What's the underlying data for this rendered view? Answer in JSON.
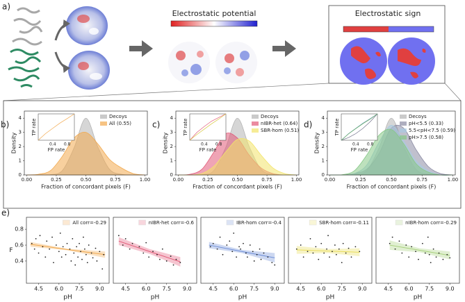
{
  "panel_a": {
    "label": "a)",
    "potential_title": "Electrostatic potential",
    "sign_title": "Electrostatic sign"
  },
  "chart_data": [
    {
      "type": "density",
      "label": "b)",
      "xlabel": "Fraction of concordant pixels (F)",
      "ylabel": "Density",
      "x": [
        0,
        0.1,
        0.2,
        0.3,
        0.4,
        0.5,
        0.6,
        0.7,
        0.8,
        0.9,
        1.0
      ],
      "xlim": [
        -0.02,
        1.02
      ],
      "ylim": [
        0,
        4.5
      ],
      "xticks": [
        {
          "value": 0,
          "label": "0.00"
        },
        {
          "value": 0.25,
          "label": "0.25"
        },
        {
          "value": 0.5,
          "label": "0.50"
        },
        {
          "value": 0.75,
          "label": "0.75"
        },
        {
          "value": 1,
          "label": "1.00"
        }
      ],
      "yticks": [
        0,
        1,
        2,
        3,
        4
      ],
      "series": [
        {
          "name": "Decoys",
          "color": "#b4b4b4",
          "values": [
            0,
            0,
            0.02,
            0.3,
            1.9,
            4.0,
            2.0,
            0.4,
            0.05,
            0,
            0
          ]
        },
        {
          "name": "All (0.55)",
          "color": "#f2a94e",
          "values": [
            0,
            0.05,
            0.3,
            1.3,
            2.6,
            3.0,
            2.2,
            1.1,
            0.5,
            0.1,
            0
          ]
        }
      ],
      "inset": {
        "xlabel": "FP rate",
        "ylabel": "TP rate",
        "xlim": [
          0,
          1
        ],
        "ylim": [
          0,
          1
        ],
        "xticks": [
          0.4,
          0.8
        ],
        "x": [
          0,
          0.2,
          0.4,
          0.6,
          0.8,
          1
        ],
        "series": [
          {
            "color": "#f2a94e",
            "values": [
              0,
              0.25,
              0.45,
              0.65,
              0.82,
              1
            ]
          }
        ]
      }
    },
    {
      "type": "density",
      "label": "c)",
      "xlabel": "Fraction of concordant pixels (F)",
      "ylabel": "Density",
      "x": [
        0,
        0.1,
        0.2,
        0.3,
        0.4,
        0.5,
        0.6,
        0.7,
        0.8,
        0.9,
        1.0
      ],
      "xlim": [
        -0.02,
        1.02
      ],
      "ylim": [
        0,
        4.5
      ],
      "xticks": [
        {
          "value": 0,
          "label": "0.00"
        },
        {
          "value": 0.25,
          "label": "0.25"
        },
        {
          "value": 0.5,
          "label": "0.50"
        },
        {
          "value": 0.75,
          "label": "0.75"
        },
        {
          "value": 1,
          "label": "1.00"
        }
      ],
      "yticks": [
        0,
        1,
        2,
        3,
        4
      ],
      "series": [
        {
          "name": "Decoys",
          "color": "#b4b4b4",
          "values": [
            0,
            0,
            0.02,
            0.3,
            1.9,
            4.0,
            2.0,
            0.4,
            0.05,
            0,
            0
          ]
        },
        {
          "name": "nIBR-het (0.64)",
          "color": "#e25a78",
          "values": [
            0,
            0.05,
            0.4,
            1.6,
            2.9,
            2.6,
            1.4,
            0.5,
            0.1,
            0,
            0
          ]
        },
        {
          "name": "SBR-hom (0.51)",
          "color": "#f2e46a",
          "values": [
            0,
            0,
            0.1,
            0.6,
            1.6,
            2.5,
            2.4,
            1.4,
            0.5,
            0.1,
            0
          ]
        }
      ],
      "inset": {
        "xlabel": "FP rate",
        "ylabel": "TP rate",
        "xlim": [
          0,
          1
        ],
        "ylim": [
          0,
          1
        ],
        "xticks": [
          0.4,
          0.8
        ],
        "x": [
          0,
          0.2,
          0.4,
          0.6,
          0.8,
          1
        ],
        "series": [
          {
            "color": "#e25a78",
            "values": [
              0,
              0.3,
              0.52,
              0.72,
              0.86,
              1
            ]
          },
          {
            "color": "#d8c840",
            "values": [
              0,
              0.22,
              0.42,
              0.62,
              0.8,
              1
            ]
          }
        ]
      }
    },
    {
      "type": "density",
      "label": "d)",
      "xlabel": "Fraction of concordant pixels (F)",
      "ylabel": "Density",
      "x": [
        0,
        0.1,
        0.2,
        0.3,
        0.4,
        0.5,
        0.6,
        0.7,
        0.8,
        0.9,
        1.0
      ],
      "xlim": [
        -0.02,
        1.02
      ],
      "ylim": [
        0,
        4.5
      ],
      "xticks": [
        {
          "value": 0,
          "label": "0.00"
        },
        {
          "value": 0.25,
          "label": "0.25"
        },
        {
          "value": 0.5,
          "label": "0.50"
        },
        {
          "value": 0.75,
          "label": "0.75"
        },
        {
          "value": 1,
          "label": "1.00"
        }
      ],
      "yticks": [
        0,
        1,
        2,
        3,
        4
      ],
      "series": [
        {
          "name": "Decoys",
          "color": "#b4b4b4",
          "values": [
            0,
            0,
            0.02,
            0.3,
            1.9,
            4.0,
            2.0,
            0.4,
            0.05,
            0,
            0
          ]
        },
        {
          "name": "pH<5.5 (0.33)",
          "color": "#8c8ca4",
          "values": [
            0,
            0,
            0.1,
            0.4,
            1.5,
            3.3,
            3.3,
            1.8,
            0.6,
            0.1,
            0
          ]
        },
        {
          "name": "5.5<pH<7.5 (0.59)",
          "color": "#a9cbe2",
          "values": [
            0,
            0,
            0.1,
            0.7,
            2.3,
            3.5,
            2.4,
            1.0,
            0.3,
            0,
            0
          ]
        },
        {
          "name": "pH>7.5 (0.58)",
          "color": "#86c886",
          "values": [
            0,
            0.02,
            0.3,
            1.4,
            2.8,
            3.2,
            2.2,
            0.8,
            0.2,
            0,
            0
          ]
        }
      ],
      "inset": {
        "xlabel": "FP rate",
        "ylabel": "TP rate",
        "xlim": [
          0,
          1
        ],
        "ylim": [
          0,
          1
        ],
        "xticks": [
          0.4,
          0.8
        ],
        "x": [
          0,
          0.2,
          0.4,
          0.6,
          0.8,
          1
        ],
        "series": [
          {
            "color": "#70708a",
            "values": [
              0,
              0.1,
              0.25,
              0.45,
              0.7,
              1
            ]
          },
          {
            "color": "#7fa9c8",
            "values": [
              0,
              0.25,
              0.45,
              0.65,
              0.82,
              1
            ]
          },
          {
            "color": "#60a860",
            "values": [
              0,
              0.24,
              0.44,
              0.63,
              0.8,
              1
            ]
          }
        ]
      }
    },
    {
      "type": "scatter",
      "label": "e)",
      "xlabel": "pH",
      "ylabel": "F",
      "xlim": [
        3.6,
        9.7
      ],
      "ylim": [
        0.12,
        0.95
      ],
      "xticks": [
        4.5,
        {
          "value": 6,
          "label": "6.0"
        },
        7.5,
        {
          "value": 9,
          "label": "9.0"
        }
      ],
      "yticks": [
        0.4,
        0.6,
        0.8
      ],
      "series": [
        {
          "name": "All corr=-0.29",
          "color": "#f2a94e",
          "x": [
            4.0,
            4.2,
            4.3,
            4.5,
            4.6,
            4.8,
            5.0,
            5.1,
            5.3,
            5.5,
            5.6,
            5.8,
            6.0,
            6.1,
            6.2,
            6.3,
            6.5,
            6.6,
            6.8,
            6.9,
            7.0,
            7.1,
            7.2,
            7.3,
            7.4,
            7.5,
            7.6,
            7.7,
            7.8,
            7.9,
            8.0,
            8.1,
            8.2,
            8.4,
            8.5,
            8.7,
            8.8,
            9.0,
            9.2,
            9.3
          ],
          "y": [
            0.62,
            0.55,
            0.68,
            0.5,
            0.72,
            0.58,
            0.45,
            0.65,
            0.55,
            0.7,
            0.38,
            0.6,
            0.52,
            0.75,
            0.45,
            0.58,
            0.48,
            0.62,
            0.55,
            0.4,
            0.68,
            0.5,
            0.35,
            0.58,
            0.45,
            0.62,
            0.52,
            0.42,
            0.7,
            0.55,
            0.48,
            0.38,
            0.6,
            0.5,
            0.44,
            0.56,
            0.4,
            0.52,
            0.3,
            0.48
          ]
        }
      ],
      "fit": {
        "x": [
          3.9,
          6.6,
          9.4
        ],
        "y": [
          0.61,
          0.545,
          0.48
        ],
        "lower": [
          0.58,
          0.535,
          0.44
        ],
        "upper": [
          0.64,
          0.555,
          0.52
        ]
      }
    },
    {
      "type": "scatter",
      "xlabel": "pH",
      "xlim": [
        3.6,
        9.7
      ],
      "ylim": [
        0.12,
        0.95
      ],
      "xticks": [
        4.5,
        {
          "value": 6,
          "label": "6.0"
        },
        7.5,
        {
          "value": 9,
          "label": "9.0"
        }
      ],
      "series": [
        {
          "name": "nIBR-het corr=-0.6",
          "color": "#e25a78",
          "x": [
            4.0,
            4.3,
            4.5,
            4.8,
            5.0,
            5.5,
            5.8,
            6.0,
            6.2,
            6.5,
            6.8,
            7.0,
            7.2,
            7.5,
            7.8,
            8.0,
            8.2,
            8.5
          ],
          "y": [
            0.72,
            0.6,
            0.68,
            0.55,
            0.62,
            0.58,
            0.5,
            0.63,
            0.45,
            0.52,
            0.48,
            0.42,
            0.55,
            0.4,
            0.46,
            0.35,
            0.42,
            0.38
          ]
        }
      ],
      "fit": {
        "x": [
          4.0,
          6.25,
          8.5
        ],
        "y": [
          0.65,
          0.52,
          0.39
        ],
        "lower": [
          0.6,
          0.49,
          0.33
        ],
        "upper": [
          0.7,
          0.55,
          0.45
        ]
      }
    },
    {
      "type": "scatter",
      "xlabel": "pH",
      "xlim": [
        3.6,
        9.7
      ],
      "ylim": [
        0.12,
        0.95
      ],
      "xticks": [
        4.5,
        {
          "value": 6,
          "label": "6.0"
        },
        7.5,
        {
          "value": 9,
          "label": "9.0"
        }
      ],
      "series": [
        {
          "name": "IBR-hom corr=-0.4",
          "color": "#6f8fd8",
          "x": [
            4.3,
            4.5,
            4.8,
            5.0,
            5.2,
            5.5,
            5.7,
            5.9,
            6.0,
            6.2,
            6.4,
            6.5,
            6.7,
            6.9,
            7.0,
            7.2,
            7.4,
            7.5,
            7.7,
            7.9,
            8.0,
            8.2,
            8.5,
            8.8,
            9.0
          ],
          "y": [
            0.58,
            0.62,
            0.55,
            0.7,
            0.48,
            0.6,
            0.65,
            0.52,
            0.75,
            0.45,
            0.58,
            0.55,
            0.62,
            0.5,
            0.45,
            0.6,
            0.52,
            0.4,
            0.48,
            0.55,
            0.42,
            0.5,
            0.45,
            0.38,
            0.35
          ]
        }
      ],
      "fit": {
        "x": [
          4.2,
          6.6,
          9.0
        ],
        "y": [
          0.6,
          0.52,
          0.44
        ],
        "lower": [
          0.56,
          0.5,
          0.38
        ],
        "upper": [
          0.64,
          0.54,
          0.5
        ]
      }
    },
    {
      "type": "scatter",
      "xlabel": "pH",
      "xlim": [
        3.6,
        9.7
      ],
      "ylim": [
        0.12,
        0.95
      ],
      "xticks": [
        4.5,
        {
          "value": 6,
          "label": "6.0"
        },
        7.5,
        {
          "value": 9,
          "label": "9.0"
        }
      ],
      "series": [
        {
          "name": "SBR-hom corr=-0.11",
          "color": "#e8dc5a",
          "x": [
            4.2,
            4.5,
            4.7,
            5.0,
            5.2,
            5.4,
            5.6,
            5.8,
            6.0,
            6.2,
            6.4,
            6.5,
            6.6,
            6.8,
            7.0,
            7.1,
            7.3,
            7.5,
            7.6,
            7.8,
            8.0,
            8.2,
            8.5,
            8.8
          ],
          "y": [
            0.55,
            0.6,
            0.45,
            0.52,
            0.68,
            0.5,
            0.58,
            0.42,
            0.62,
            0.5,
            0.55,
            0.72,
            0.45,
            0.52,
            0.6,
            0.48,
            0.55,
            0.38,
            0.62,
            0.5,
            0.56,
            0.45,
            0.58,
            0.52
          ]
        }
      ],
      "fit": {
        "x": [
          4.2,
          6.5,
          8.8
        ],
        "y": [
          0.54,
          0.525,
          0.51
        ],
        "lower": [
          0.49,
          0.5,
          0.46
        ],
        "upper": [
          0.59,
          0.55,
          0.56
        ]
      }
    },
    {
      "type": "scatter",
      "xlabel": "pH",
      "xlim": [
        3.6,
        9.7
      ],
      "ylim": [
        0.12,
        0.95
      ],
      "xticks": [
        4.5,
        {
          "value": 6,
          "label": "6.0"
        },
        7.5,
        {
          "value": 9,
          "label": "9.0"
        }
      ],
      "series": [
        {
          "name": "nIBR-hom corr=-0.29",
          "color": "#a6d07a",
          "x": [
            4.6,
            4.8,
            5.0,
            5.3,
            5.5,
            5.8,
            6.0,
            6.2,
            6.5,
            6.7,
            7.0,
            7.2,
            7.4,
            7.5,
            7.6,
            7.8,
            8.0,
            8.2,
            8.5,
            8.8,
            9.0
          ],
          "y": [
            0.62,
            0.7,
            0.55,
            0.65,
            0.5,
            0.6,
            0.45,
            0.58,
            0.52,
            0.42,
            0.62,
            0.5,
            0.7,
            0.48,
            0.38,
            0.55,
            0.45,
            0.5,
            0.42,
            0.48,
            0.44
          ]
        }
      ],
      "fit": {
        "x": [
          4.6,
          6.8,
          9.0
        ],
        "y": [
          0.6,
          0.535,
          0.47
        ],
        "lower": [
          0.54,
          0.51,
          0.42
        ],
        "upper": [
          0.66,
          0.56,
          0.52
        ]
      }
    }
  ]
}
